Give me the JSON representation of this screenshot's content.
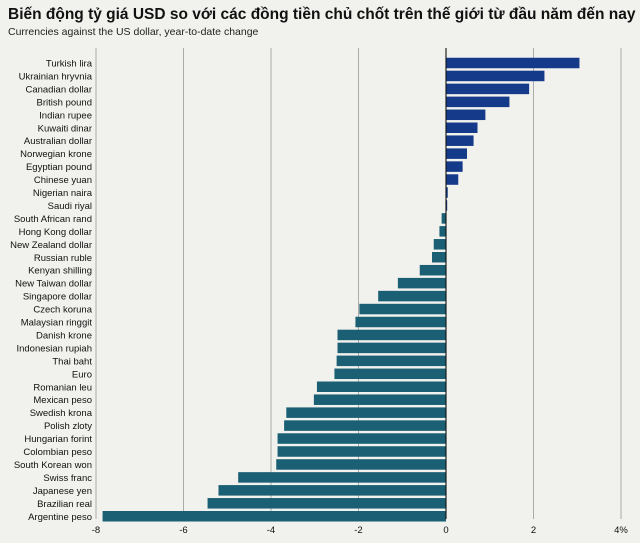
{
  "title": "Biến động tỷ giá USD so với các đồng tiền chủ chốt trên thế giới từ đầu năm đến nay",
  "subtitle": "Currencies against the US dollar, year-to-date change",
  "colors": {
    "positive": "#163a8a",
    "negative": "#1a5f73",
    "grid": "#999999",
    "zero_line": "#111111",
    "background": "#f1f1ee"
  },
  "chart_data": {
    "type": "bar",
    "orientation": "horizontal",
    "xlim": [
      -8,
      4
    ],
    "xticks": [
      -8,
      -6,
      -4,
      -2,
      0,
      2,
      4
    ],
    "xtick_labels": [
      "-8",
      "-6",
      "-4",
      "-2",
      "0",
      "2",
      "4%"
    ],
    "grid": true,
    "categories": [
      "Turkish lira",
      "Ukrainian hryvnia",
      "Canadian dollar",
      "British pound",
      "Indian rupee",
      "Kuwaiti dinar",
      "Australian dollar",
      "Norwegian krone",
      "Egyptian pound",
      "Chinese yuan",
      "Nigerian naira",
      "Saudi riyal",
      "South African rand",
      "Hong Kong dollar",
      "New Zealand dollar",
      "Russian ruble",
      "Kenyan shilling",
      "New Taiwan dollar",
      "Singapore dollar",
      "Czech koruna",
      "Malaysian ringgit",
      "Danish krone",
      "Indonesian rupiah",
      "Thai baht",
      "Euro",
      "Romanian leu",
      "Mexican peso",
      "Swedish krona",
      "Polish zloty",
      "Hungarian forint",
      "Colombian peso",
      "South Korean won",
      "Swiss franc",
      "Japanese yen",
      "Brazilian real",
      "Argentine peso"
    ],
    "values": [
      3.05,
      2.25,
      1.9,
      1.45,
      0.9,
      0.72,
      0.63,
      0.48,
      0.38,
      0.28,
      0.04,
      0.01,
      -0.1,
      -0.15,
      -0.28,
      -0.32,
      -0.6,
      -1.1,
      -1.55,
      -1.98,
      -2.07,
      -2.48,
      -2.48,
      -2.5,
      -2.55,
      -2.95,
      -3.02,
      -3.65,
      -3.7,
      -3.85,
      -3.85,
      -3.88,
      -4.75,
      -5.2,
      -5.45,
      -7.85
    ]
  }
}
